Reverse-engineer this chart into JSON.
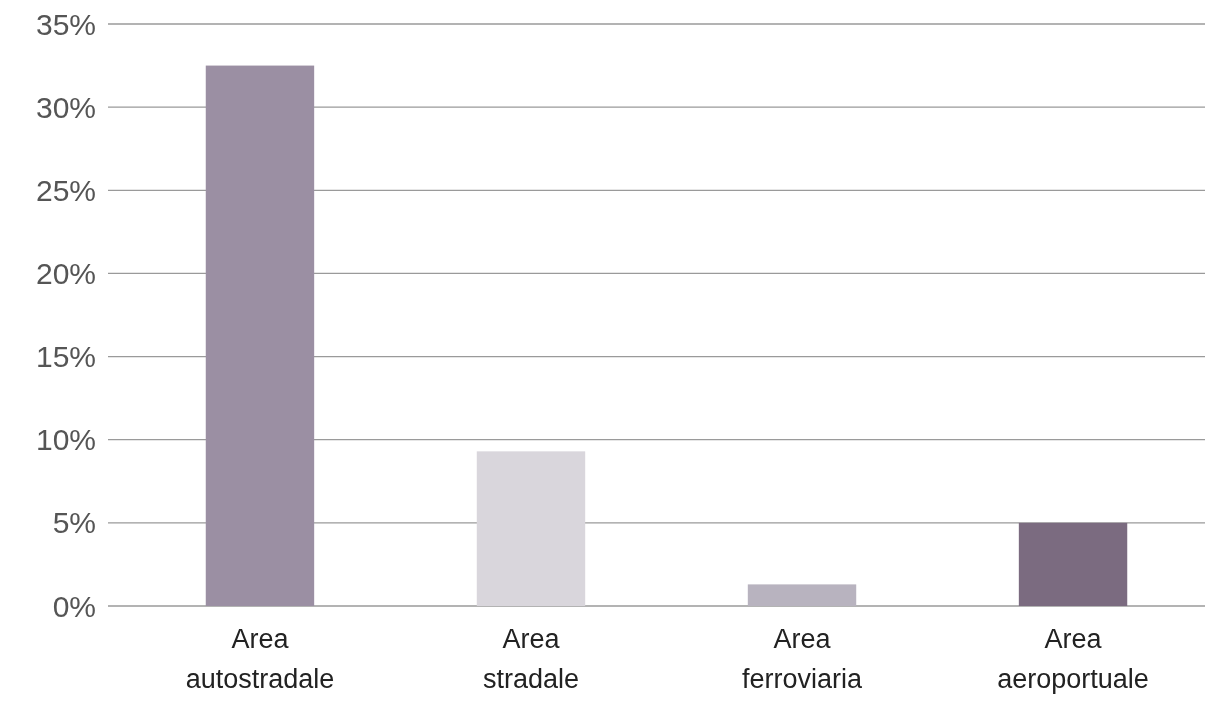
{
  "chart_data": {
    "type": "bar",
    "categories": [
      "Area autostradale",
      "Area stradale",
      "Area ferroviaria",
      "Area aeroportuale"
    ],
    "values": [
      32.5,
      9.3,
      1.3,
      5.0
    ],
    "colors": [
      "#9b8fa3",
      "#d9d6dc",
      "#b8b3bf",
      "#7b6b80"
    ],
    "ylim": [
      0,
      35
    ],
    "yticks": [
      {
        "value": 0,
        "label": "0%"
      },
      {
        "value": 5,
        "label": "5%"
      },
      {
        "value": 10,
        "label": "10%"
      },
      {
        "value": 15,
        "label": "15%"
      },
      {
        "value": 20,
        "label": "20%"
      },
      {
        "value": 25,
        "label": "25%"
      },
      {
        "value": 30,
        "label": "30%"
      },
      {
        "value": 35,
        "label": "35%"
      }
    ],
    "grid": "y"
  }
}
